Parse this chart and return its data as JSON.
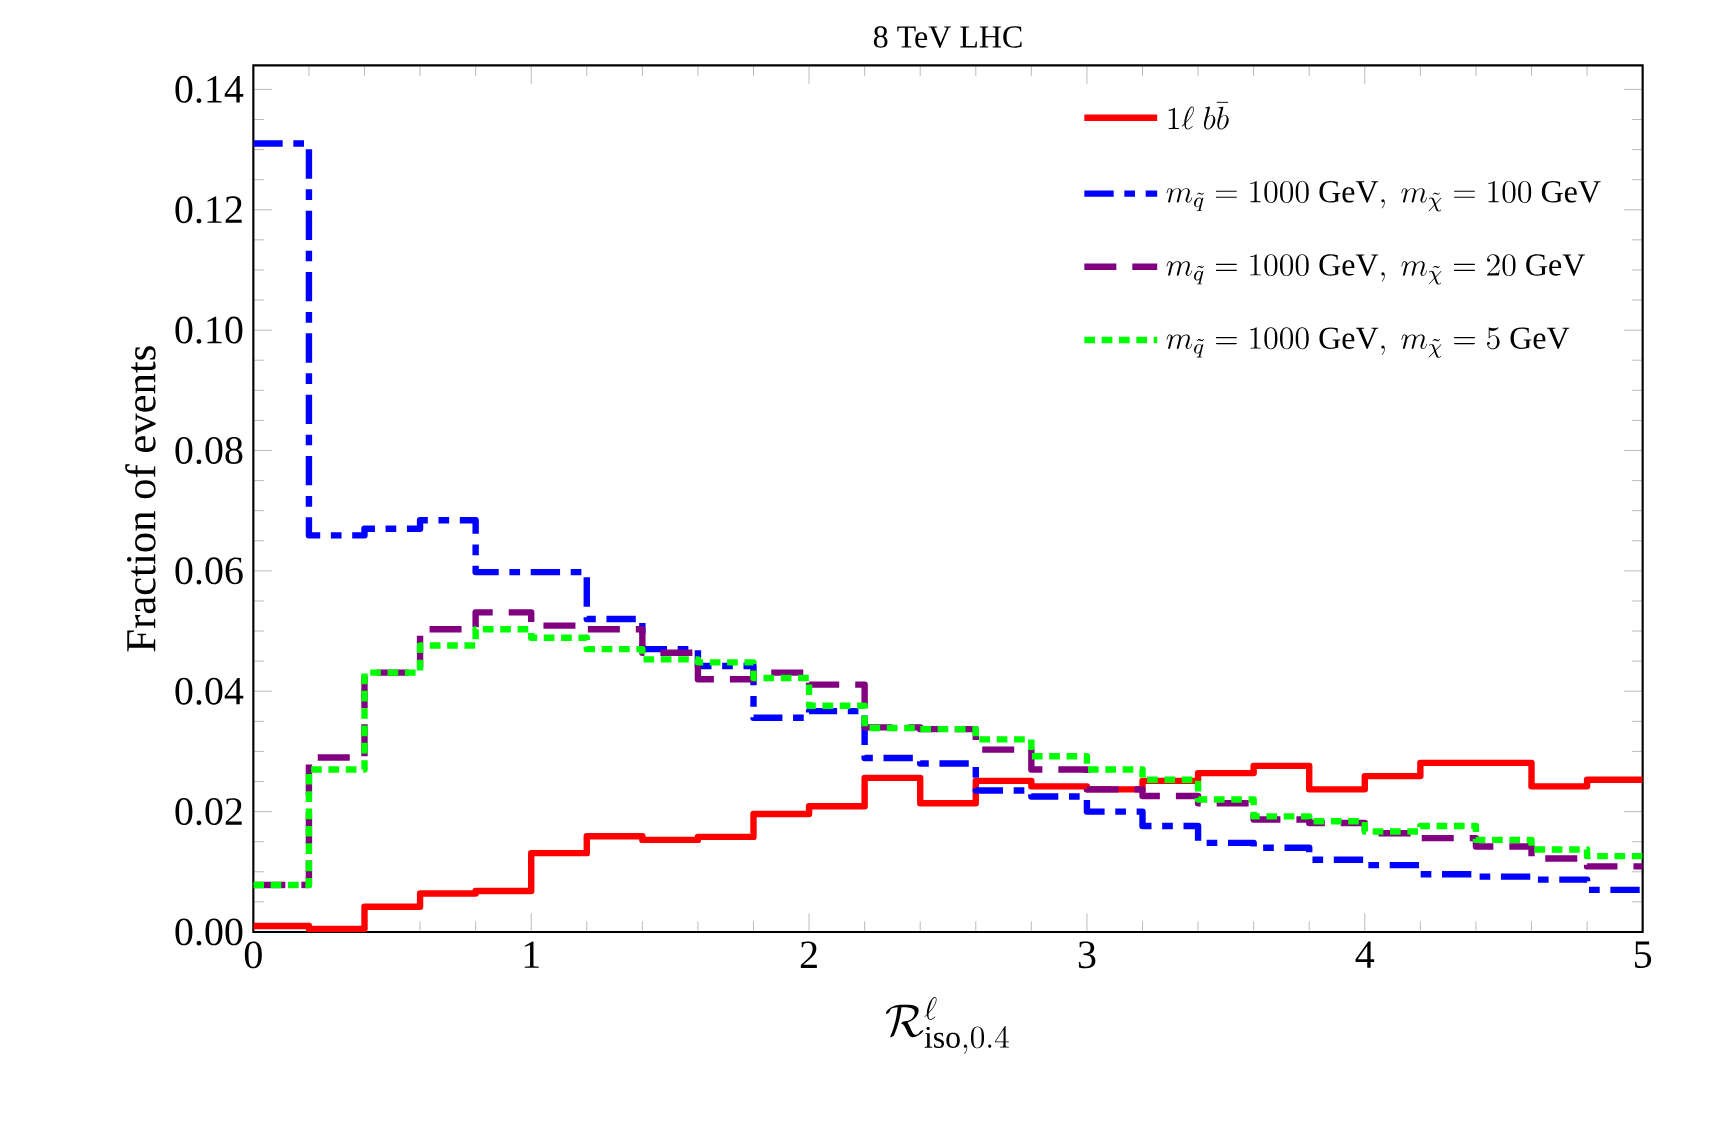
{
  "chart_data": {
    "type": "histogram",
    "title": "8 TeV LHC",
    "xlabel": "\\mathcal{R}^{\\ell}_{\\mathrm{iso},0.4}",
    "ylabel": "Fraction of events",
    "bins": [
      0,
      0.2,
      0.4,
      0.6,
      0.8,
      1.0,
      1.2,
      1.4,
      1.6,
      1.8,
      2.0,
      2.2,
      2.4,
      2.6,
      2.8,
      3.0,
      3.2,
      3.4,
      3.6,
      3.8,
      4.0,
      4.2,
      4.4,
      4.6,
      4.8,
      5.0
    ],
    "series": [
      {
        "name": "1\\ell\\ b\\bar{b}",
        "color": "#ff0000",
        "line_style": "solid",
        "values": [
          0.001,
          0.0005,
          0.0042,
          0.0064,
          0.0068,
          0.0131,
          0.0159,
          0.0153,
          0.0158,
          0.0196,
          0.0209,
          0.0256,
          0.0214,
          0.0251,
          0.0242,
          0.0237,
          0.0251,
          0.0264,
          0.0276,
          0.0237,
          0.0259,
          0.0281,
          0.0281,
          0.0242,
          0.0253
        ]
      },
      {
        "name": "m_{\\tilde{q}} = 1000\\ \\mathrm{GeV},\\ m_{\\tilde{\\chi}} = 100\\ \\mathrm{GeV}",
        "color": "#0000ff",
        "line_style": "dashdot",
        "values": [
          0.131,
          0.0659,
          0.067,
          0.0684,
          0.0598,
          0.0598,
          0.052,
          0.047,
          0.0442,
          0.0356,
          0.0367,
          0.0289,
          0.028,
          0.0235,
          0.0225,
          0.02,
          0.0176,
          0.0148,
          0.014,
          0.012,
          0.0111,
          0.0096,
          0.0092,
          0.0087,
          0.007
        ]
      },
      {
        "name": "m_{\\tilde{q}} = 1000\\ \\mathrm{GeV},\\ m_{\\tilde{\\chi}} = 20\\ \\mathrm{GeV}",
        "color": "#800080",
        "line_style": "dashed",
        "values": [
          0.0078,
          0.029,
          0.0431,
          0.0503,
          0.0531,
          0.0509,
          0.0503,
          0.0464,
          0.042,
          0.0431,
          0.0411,
          0.034,
          0.0337,
          0.0303,
          0.027,
          0.0237,
          0.0226,
          0.0214,
          0.0187,
          0.0181,
          0.0164,
          0.0156,
          0.0142,
          0.0122,
          0.0109
        ]
      },
      {
        "name": "m_{\\tilde{q}} = 1000\\ \\mathrm{GeV},\\ m_{\\tilde{\\chi}} = 5\\ \\mathrm{GeV}",
        "color": "#00ff00",
        "line_style": "dotted",
        "values": [
          0.0078,
          0.027,
          0.0431,
          0.0476,
          0.0503,
          0.0489,
          0.047,
          0.0453,
          0.0448,
          0.0422,
          0.0376,
          0.0339,
          0.0337,
          0.032,
          0.0292,
          0.027,
          0.0253,
          0.022,
          0.0192,
          0.0184,
          0.0167,
          0.0176,
          0.0153,
          0.0137,
          0.0126
        ]
      }
    ],
    "xlim": [
      0,
      5
    ],
    "ylim": [
      0,
      0.144
    ],
    "xticks": [
      0,
      1,
      2,
      3,
      4,
      5
    ],
    "yticks": [
      {
        "value": 0,
        "label": "0.00"
      },
      {
        "value": 0.02,
        "label": "0.02"
      },
      {
        "value": 0.04,
        "label": "0.04"
      },
      {
        "value": 0.06,
        "label": "0.06"
      },
      {
        "value": 0.08,
        "label": "0.08"
      },
      {
        "value": 0.1,
        "label": "0.10"
      },
      {
        "value": 0.12,
        "label": "0.12"
      },
      {
        "value": 0.14,
        "label": "0.14"
      }
    ],
    "grid": false,
    "legend": "top right"
  }
}
